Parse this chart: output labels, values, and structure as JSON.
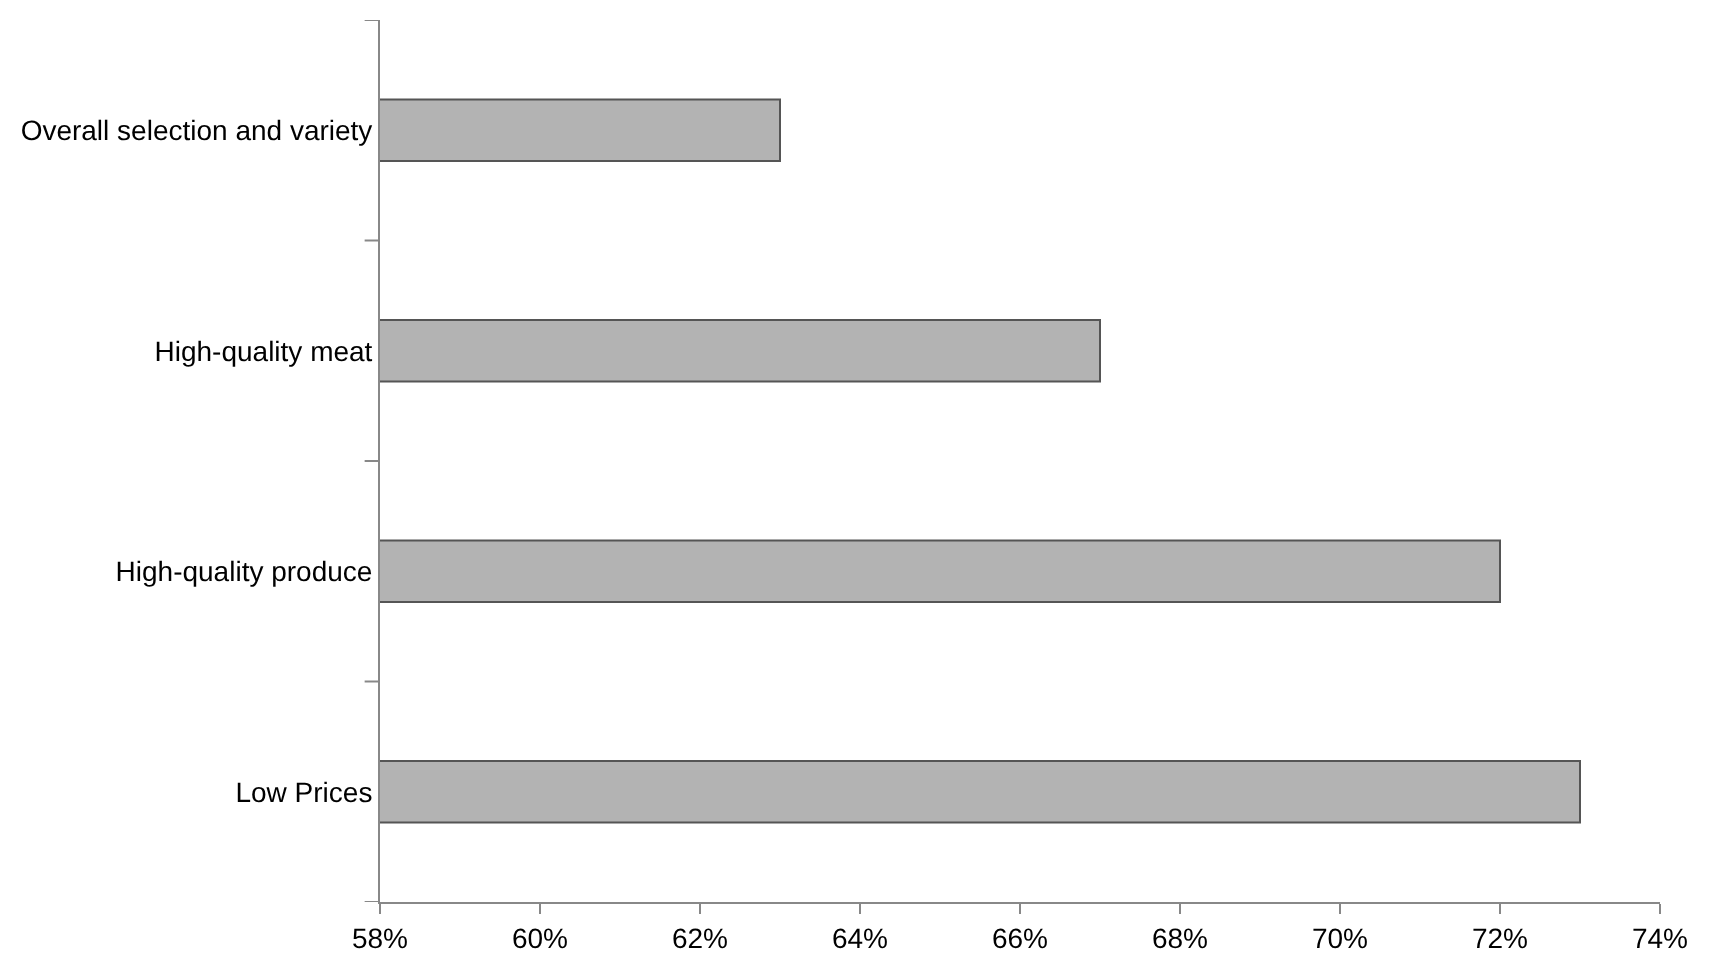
{
  "chart_data": {
    "type": "bar",
    "orientation": "horizontal",
    "categories": [
      "Overall selection and variety",
      "High-quality meat",
      "High-quality produce",
      "Low Prices"
    ],
    "values": [
      63,
      67,
      72,
      73
    ],
    "color": "#b3b3b3",
    "xlim": [
      58,
      74
    ],
    "xticks": [
      {
        "value": 58,
        "label": "58%"
      },
      {
        "value": 60,
        "label": "60%"
      },
      {
        "value": 62,
        "label": "62%"
      },
      {
        "value": 64,
        "label": "64%"
      },
      {
        "value": 66,
        "label": "66%"
      },
      {
        "value": 68,
        "label": "68%"
      },
      {
        "value": 70,
        "label": "70%"
      },
      {
        "value": 72,
        "label": "72%"
      },
      {
        "value": 74,
        "label": "74%"
      }
    ],
    "grid": false
  }
}
